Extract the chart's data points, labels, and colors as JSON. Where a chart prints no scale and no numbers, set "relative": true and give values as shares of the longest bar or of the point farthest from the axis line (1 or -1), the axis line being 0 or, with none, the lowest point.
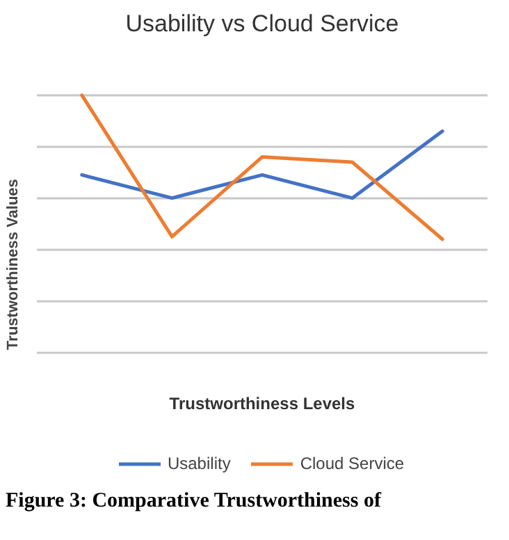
{
  "chart_data": {
    "type": "line",
    "title": "Usability vs Cloud Service",
    "xlabel": "Trustworthiness Levels",
    "ylabel": "Trustworthiness  Values",
    "categories": [
      null,
      null,
      null,
      null,
      null
    ],
    "relative": true,
    "grid": "y",
    "legend": "bottom",
    "series": [
      {
        "name": "Usability",
        "color": "#4472c4",
        "values": [
          0.69,
          0.6,
          0.69,
          0.6,
          0.86
        ]
      },
      {
        "name": "Cloud Service",
        "color": "#ed7d31",
        "values": [
          1,
          0.45,
          0.76,
          0.74,
          0.44
        ]
      }
    ],
    "annotations": [
      "Figure 3: Comparative Trustworthiness of"
    ]
  }
}
